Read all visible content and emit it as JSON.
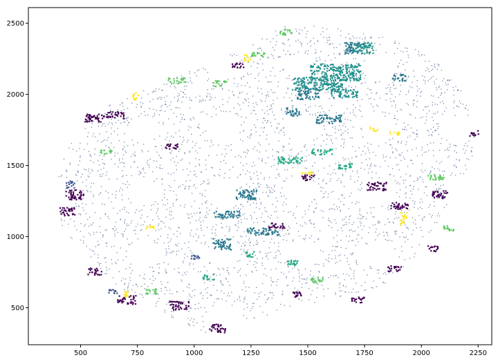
{
  "chart_data": {
    "type": "scatter",
    "title": "",
    "xlabel": "",
    "ylabel": "",
    "xlim": [
      270,
      2310
    ],
    "ylim": [
      240,
      2610
    ],
    "grid": false,
    "legend": "none",
    "x_ticks": [
      500,
      750,
      1000,
      1250,
      1500,
      1750,
      2000,
      2250
    ],
    "y_ticks": [
      500,
      1000,
      1500,
      2000,
      2500
    ],
    "x_tick_labels": [
      "500",
      "750",
      "1000",
      "1250",
      "1500",
      "1750",
      "2000",
      "2250"
    ],
    "y_tick_labels": [
      "500",
      "1000",
      "1500",
      "2000",
      "2500"
    ],
    "colormap": "viridis",
    "series": [
      {
        "color": "#440154",
        "regions": [
          {
            "x": 470,
            "y": 1300,
            "w": 80,
            "h": 70
          },
          {
            "x": 440,
            "y": 1180,
            "w": 70,
            "h": 60
          },
          {
            "x": 560,
            "y": 1840,
            "w": 90,
            "h": 60
          },
          {
            "x": 650,
            "y": 1860,
            "w": 80,
            "h": 50
          },
          {
            "x": 700,
            "y": 560,
            "w": 80,
            "h": 60
          },
          {
            "x": 930,
            "y": 520,
            "w": 90,
            "h": 60
          },
          {
            "x": 1100,
            "y": 360,
            "w": 70,
            "h": 60
          },
          {
            "x": 1800,
            "y": 1360,
            "w": 90,
            "h": 60
          },
          {
            "x": 1900,
            "y": 1220,
            "w": 80,
            "h": 50
          },
          {
            "x": 2080,
            "y": 1300,
            "w": 70,
            "h": 60
          },
          {
            "x": 2230,
            "y": 1730,
            "w": 40,
            "h": 40
          },
          {
            "x": 1720,
            "y": 560,
            "w": 60,
            "h": 40
          },
          {
            "x": 1880,
            "y": 780,
            "w": 60,
            "h": 40
          },
          {
            "x": 1360,
            "y": 1080,
            "w": 70,
            "h": 40
          },
          {
            "x": 1500,
            "y": 1420,
            "w": 60,
            "h": 40
          },
          {
            "x": 900,
            "y": 1640,
            "w": 60,
            "h": 40
          },
          {
            "x": 1450,
            "y": 600,
            "w": 50,
            "h": 40
          },
          {
            "x": 560,
            "y": 760,
            "w": 60,
            "h": 50
          },
          {
            "x": 1190,
            "y": 2210,
            "w": 50,
            "h": 40
          },
          {
            "x": 2050,
            "y": 920,
            "w": 50,
            "h": 40
          }
        ]
      },
      {
        "color": "#3b528b",
        "regions": [
          {
            "x": 450,
            "y": 1370,
            "w": 40,
            "h": 50
          },
          {
            "x": 640,
            "y": 620,
            "w": 40,
            "h": 30
          },
          {
            "x": 1000,
            "y": 860,
            "w": 40,
            "h": 30
          }
        ]
      },
      {
        "color": "#2a788e",
        "regions": [
          {
            "x": 1230,
            "y": 1300,
            "w": 100,
            "h": 70
          },
          {
            "x": 1140,
            "y": 1160,
            "w": 120,
            "h": 50
          },
          {
            "x": 1300,
            "y": 1040,
            "w": 140,
            "h": 50
          },
          {
            "x": 1120,
            "y": 950,
            "w": 80,
            "h": 80
          },
          {
            "x": 1500,
            "y": 2010,
            "w": 100,
            "h": 80
          },
          {
            "x": 1590,
            "y": 1830,
            "w": 110,
            "h": 60
          },
          {
            "x": 1430,
            "y": 1880,
            "w": 60,
            "h": 60
          },
          {
            "x": 1700,
            "y": 2330,
            "w": 90,
            "h": 80
          },
          {
            "x": 1900,
            "y": 2120,
            "w": 60,
            "h": 50
          }
        ]
      },
      {
        "color": "#21918c",
        "regions": [
          {
            "x": 1620,
            "y": 2160,
            "w": 220,
            "h": 120
          },
          {
            "x": 1540,
            "y": 2080,
            "w": 220,
            "h": 90
          },
          {
            "x": 1740,
            "y": 2330,
            "w": 90,
            "h": 80
          },
          {
            "x": 1660,
            "y": 2010,
            "w": 120,
            "h": 60
          }
        ]
      },
      {
        "color": "#22a884",
        "regions": [
          {
            "x": 1420,
            "y": 1540,
            "w": 110,
            "h": 50
          },
          {
            "x": 1560,
            "y": 1600,
            "w": 90,
            "h": 40
          },
          {
            "x": 1660,
            "y": 1500,
            "w": 70,
            "h": 40
          },
          {
            "x": 1060,
            "y": 720,
            "w": 50,
            "h": 40
          },
          {
            "x": 1430,
            "y": 820,
            "w": 60,
            "h": 40
          },
          {
            "x": 1240,
            "y": 880,
            "w": 40,
            "h": 40
          }
        ]
      },
      {
        "color": "#5ec962",
        "regions": [
          {
            "x": 610,
            "y": 1600,
            "w": 60,
            "h": 30
          },
          {
            "x": 920,
            "y": 2100,
            "w": 80,
            "h": 40
          },
          {
            "x": 1110,
            "y": 2080,
            "w": 60,
            "h": 40
          },
          {
            "x": 1280,
            "y": 2280,
            "w": 60,
            "h": 40
          },
          {
            "x": 2060,
            "y": 1420,
            "w": 70,
            "h": 40
          },
          {
            "x": 1540,
            "y": 700,
            "w": 60,
            "h": 40
          },
          {
            "x": 810,
            "y": 620,
            "w": 50,
            "h": 40
          },
          {
            "x": 2120,
            "y": 1060,
            "w": 50,
            "h": 40
          },
          {
            "x": 1400,
            "y": 2440,
            "w": 60,
            "h": 40
          }
        ]
      },
      {
        "color": "#fde725",
        "regions": [
          {
            "x": 1920,
            "y": 1130,
            "w": 30,
            "h": 90
          },
          {
            "x": 1230,
            "y": 2260,
            "w": 30,
            "h": 50
          },
          {
            "x": 740,
            "y": 1990,
            "w": 30,
            "h": 50
          },
          {
            "x": 1790,
            "y": 1760,
            "w": 40,
            "h": 30
          },
          {
            "x": 1880,
            "y": 1730,
            "w": 50,
            "h": 20
          },
          {
            "x": 800,
            "y": 1070,
            "w": 40,
            "h": 20
          },
          {
            "x": 700,
            "y": 600,
            "w": 20,
            "h": 40
          },
          {
            "x": 1500,
            "y": 1450,
            "w": 60,
            "h": 20
          }
        ]
      }
    ],
    "background_series": {
      "color": "#5a6f9a",
      "region": "bulk"
    }
  }
}
